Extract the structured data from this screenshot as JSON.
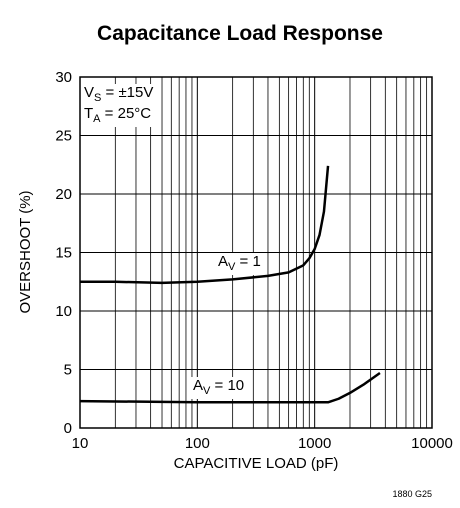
{
  "chart_data": {
    "type": "line",
    "title": "Capacitance Load Response",
    "xlabel": "CAPACITIVE LOAD (pF)",
    "ylabel": "OVERSHOOT (%)",
    "xscale": "log",
    "xlim": [
      10,
      10000
    ],
    "xticks": [
      10,
      100,
      1000,
      10000
    ],
    "ylim": [
      0,
      30
    ],
    "yticks": [
      0,
      5,
      10,
      15,
      20,
      25,
      30
    ],
    "grid": true,
    "annotations": [
      {
        "main": "V",
        "sub": "S",
        "rest": " = ±15V"
      },
      {
        "main": "T",
        "sub": "A",
        "rest": " = 25°C"
      }
    ],
    "series": [
      {
        "label": {
          "main": "A",
          "sub": "V",
          "rest": " = 1"
        },
        "color": "#000000",
        "x": [
          10,
          20,
          50,
          100,
          200,
          400,
          600,
          800,
          900,
          1000,
          1100,
          1200,
          1300
        ],
        "values": [
          12.5,
          12.5,
          12.4,
          12.5,
          12.7,
          13,
          13.3,
          13.9,
          14.5,
          15.3,
          16.5,
          18.5,
          22.4
        ]
      },
      {
        "label": {
          "main": "A",
          "sub": "V",
          "rest": " = 10"
        },
        "color": "#000000",
        "x": [
          10,
          100,
          500,
          1000,
          1300,
          1600,
          2000,
          2600,
          3600
        ],
        "values": [
          2.3,
          2.2,
          2.2,
          2.2,
          2.2,
          2.5,
          3.0,
          3.7,
          4.7
        ]
      }
    ],
    "footnote": "1880 G25"
  }
}
